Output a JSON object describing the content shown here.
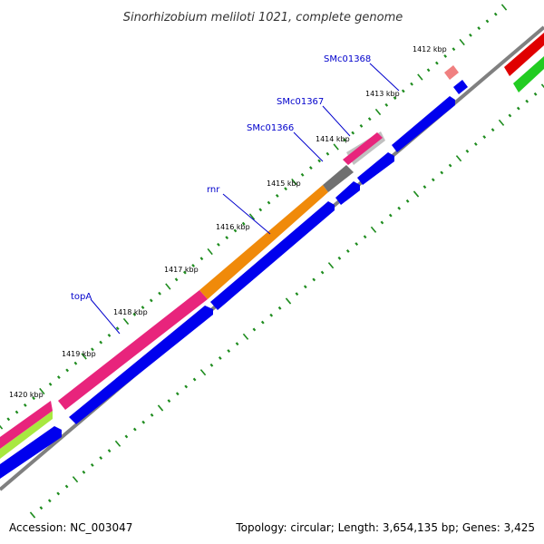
{
  "title": "Sinorhizobium meliloti 1021, complete genome",
  "footer": {
    "accession": "Accession: NC_003047",
    "summary": "Topology: circular; Length: 3,654,135 bp; Genes: 3,425"
  },
  "ticks": [
    {
      "label": "1412 kbp"
    },
    {
      "label": "1413 kbp"
    },
    {
      "label": "1414 kbp"
    },
    {
      "label": "1415 kbp"
    },
    {
      "label": "1416 kbp"
    },
    {
      "label": "1417 kbp"
    },
    {
      "label": "1418 kbp"
    },
    {
      "label": "1419 kbp"
    },
    {
      "label": "1420 kbp"
    }
  ],
  "genes": [
    {
      "label": "SMc01368"
    },
    {
      "label": "SMc01367"
    },
    {
      "label": "SMc01366"
    },
    {
      "label": "rnr"
    },
    {
      "label": "topA"
    }
  ],
  "colors": {
    "forward_cds": "#0000ee",
    "outer_feature": "#e8247c",
    "rRNA_like": "#f08a0a",
    "gray_feature": "#707070",
    "pale_feature": "#f08080",
    "backbone": "#808080",
    "tick_marks": "#1e8c1e",
    "red_feature": "#e00000",
    "green_feature": "#22cc22",
    "lime_feature": "#a8e840",
    "label_color": "#0000cc"
  },
  "icons": {
    "strand_arrow": "arrow-head-shape"
  }
}
